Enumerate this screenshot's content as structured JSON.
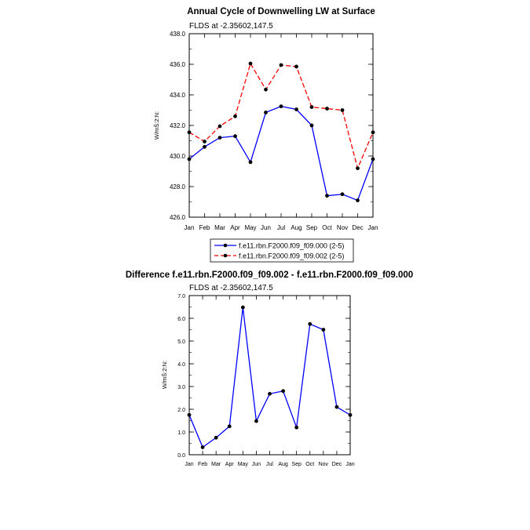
{
  "chart_data": [
    {
      "type": "line",
      "title": "Annual Cycle of Downwelling LW at Surface",
      "subtitle": "FLDS at -2.35602,147.5",
      "ylabel": "W/mŠ:2:N:",
      "categories": [
        "Jan",
        "Feb",
        "Mar",
        "Apr",
        "May",
        "Jun",
        "Jul",
        "Aug",
        "Sep",
        "Oct",
        "Nov",
        "Dec",
        "Jan"
      ],
      "ylim": [
        426.0,
        438.0
      ],
      "yticks": [
        "426.0",
        "428.0",
        "430.0",
        "432.0",
        "434.0",
        "436.0",
        "438.0"
      ],
      "grid": false,
      "legend_position": "bottom",
      "series": [
        {
          "name": "f.e11.rbn.F2000.f09_f09.000 (2-5)",
          "color": "#0000ff",
          "dash": "solid",
          "values": [
            429.8,
            430.6,
            431.2,
            431.3,
            429.6,
            432.85,
            433.25,
            433.05,
            432.0,
            427.4,
            427.5,
            427.1,
            429.8
          ]
        },
        {
          "name": "f.e11.rbn.F2000.f09_f09.002 (2-5)",
          "color": "#ff0000",
          "dash": "dashed",
          "values": [
            431.55,
            430.95,
            431.95,
            432.6,
            436.05,
            434.35,
            435.95,
            435.85,
            433.2,
            433.1,
            433.0,
            429.2,
            431.55
          ]
        }
      ]
    },
    {
      "type": "line",
      "title": "Difference f.e11.rbn.F2000.f09_f09.002 - f.e11.rbn.F2000.f09_f09.000",
      "subtitle": "FLDS at -2.35602,147.5",
      "ylabel": "W/mŠ:2:N:",
      "categories": [
        "Jan",
        "Feb",
        "Mar",
        "Apr",
        "May",
        "Jun",
        "Jul",
        "Aug",
        "Sep",
        "Oct",
        "Nov",
        "Dec",
        "Jan"
      ],
      "ylim": [
        0.0,
        7.0
      ],
      "yticks": [
        "0.0",
        "1.0",
        "2.0",
        "3.0",
        "4.0",
        "5.0",
        "6.0",
        "7.0"
      ],
      "grid": false,
      "series": [
        {
          "color": "#0000ff",
          "dash": "solid",
          "values": [
            1.75,
            0.33,
            0.75,
            1.25,
            6.48,
            1.48,
            2.68,
            2.8,
            1.2,
            5.75,
            5.5,
            2.1,
            1.75
          ]
        }
      ]
    }
  ]
}
